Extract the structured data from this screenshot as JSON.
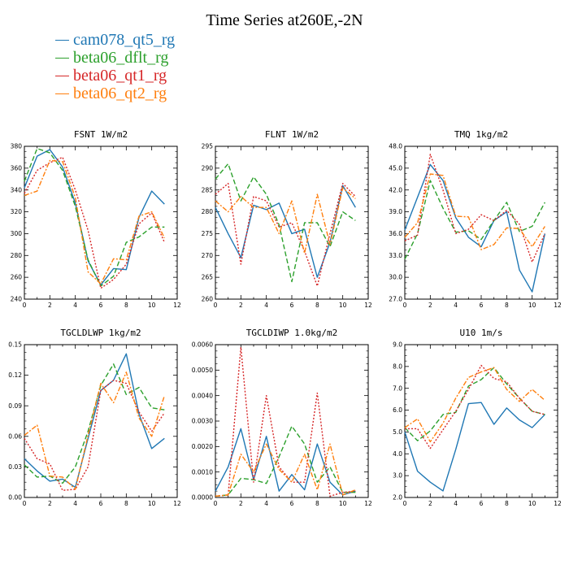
{
  "figure_title": "Time Series at260E,-2N",
  "colors": {
    "cam078_qt5_rg": "#1f77b4",
    "beta06_dflt_rg": "#2ca02c",
    "beta06_qt1_rg": "#d62728",
    "beta06_qt2_rg": "#ff7f0e"
  },
  "legend": [
    {
      "name": "cam078_qt5_rg",
      "color": "#1f77b4",
      "dash": "solid"
    },
    {
      "name": "beta06_dflt_rg",
      "color": "#2ca02c",
      "dash": "dashed"
    },
    {
      "name": "beta06_qt1_rg",
      "color": "#d62728",
      "dash": "dotted"
    },
    {
      "name": "beta06_qt2_rg",
      "color": "#ff7f0e",
      "dash": "dashdot"
    }
  ],
  "chart_data": [
    {
      "type": "line",
      "title": "FSNT   1W/m2",
      "x": [
        0,
        1,
        2,
        3,
        4,
        5,
        6,
        7,
        8,
        9,
        10,
        11
      ],
      "xlim": [
        0,
        12
      ],
      "xticks": [
        0,
        2,
        4,
        6,
        8,
        10,
        12
      ],
      "ylim": [
        240,
        380
      ],
      "yticks": [
        240,
        260,
        280,
        300,
        320,
        340,
        360,
        380
      ],
      "ytick_labels": [
        "240",
        "260",
        "280",
        "300",
        "320",
        "340",
        "360",
        "380"
      ],
      "series": [
        {
          "name": "cam078_qt5_rg",
          "values": [
            342,
            371,
            377,
            361,
            328,
            275,
            253,
            268,
            267,
            315,
            339,
            327
          ]
        },
        {
          "name": "beta06_dflt_rg",
          "values": [
            348,
            378,
            374,
            358,
            325,
            276,
            252,
            261,
            292,
            297,
            306,
            306
          ]
        },
        {
          "name": "beta06_qt1_rg",
          "values": [
            337,
            358,
            365,
            370,
            340,
            303,
            250,
            258,
            272,
            309,
            319,
            292
          ]
        },
        {
          "name": "beta06_qt2_rg",
          "values": [
            335,
            339,
            367,
            366,
            333,
            265,
            254,
            277,
            276,
            316,
            320,
            296
          ]
        }
      ]
    },
    {
      "type": "line",
      "title": "FLNT   1W/m2",
      "x": [
        0,
        1,
        2,
        3,
        4,
        5,
        6,
        7,
        8,
        9,
        10,
        11
      ],
      "xlim": [
        0,
        12
      ],
      "xticks": [
        0,
        2,
        4,
        6,
        8,
        10,
        12
      ],
      "ylim": [
        260,
        295
      ],
      "yticks": [
        260,
        265,
        270,
        275,
        280,
        285,
        290,
        295
      ],
      "ytick_labels": [
        "260",
        "265",
        "270",
        "275",
        "280",
        "285",
        "290",
        "295"
      ],
      "series": [
        {
          "name": "cam078_qt5_rg",
          "values": [
            281,
            275,
            269.5,
            281.5,
            280.5,
            282,
            275,
            276,
            265,
            273,
            286,
            281
          ]
        },
        {
          "name": "beta06_dflt_rg",
          "values": [
            287.5,
            291,
            282.5,
            288,
            284,
            277,
            264,
            277.5,
            277.5,
            272,
            280,
            278
          ]
        },
        {
          "name": "beta06_qt1_rg",
          "values": [
            284,
            286.5,
            268,
            283.5,
            282.5,
            276.5,
            277.5,
            271,
            263,
            275,
            286.5,
            283.5
          ]
        },
        {
          "name": "beta06_qt2_rg",
          "values": [
            282.5,
            280,
            283.5,
            281,
            281,
            275,
            282.5,
            270.5,
            284,
            272.5,
            285.5,
            283
          ]
        }
      ]
    },
    {
      "type": "line",
      "title": "TMQ   1kg/m2",
      "x": [
        0,
        1,
        2,
        3,
        4,
        5,
        6,
        7,
        8,
        9,
        10,
        11
      ],
      "xlim": [
        0,
        12
      ],
      "xticks": [
        0,
        2,
        4,
        6,
        8,
        10,
        12
      ],
      "ylim": [
        27,
        48
      ],
      "yticks": [
        27,
        30,
        33,
        36,
        39,
        42,
        45,
        48
      ],
      "ytick_labels": [
        "27.0",
        "30.0",
        "33.0",
        "36.0",
        "39.0",
        "42.0",
        "45.0",
        "48.0"
      ],
      "series": [
        {
          "name": "cam078_qt5_rg",
          "values": [
            36.5,
            41,
            45.5,
            43.3,
            38.2,
            35.5,
            34.2,
            37.8,
            39,
            31,
            28,
            36
          ]
        },
        {
          "name": "beta06_dflt_rg",
          "values": [
            32.5,
            36,
            43.3,
            39.5,
            36.2,
            36.4,
            35.2,
            37.8,
            40.3,
            36.3,
            37,
            40.3
          ]
        },
        {
          "name": "beta06_qt1_rg",
          "values": [
            35,
            35.8,
            46.9,
            42,
            36,
            36.6,
            38.6,
            37.8,
            39.2,
            37.3,
            32.1,
            36
          ]
        },
        {
          "name": "beta06_qt2_rg",
          "values": [
            35.5,
            37.5,
            44.2,
            44,
            38.4,
            38.3,
            33.8,
            34.5,
            36.8,
            36.7,
            34.2,
            37
          ]
        }
      ]
    },
    {
      "type": "line",
      "title": "TGCLDLWP   1kg/m2",
      "x": [
        0,
        1,
        2,
        3,
        4,
        5,
        6,
        7,
        8,
        9,
        10,
        11
      ],
      "xlim": [
        0,
        12
      ],
      "xticks": [
        0,
        2,
        4,
        6,
        8,
        10,
        12
      ],
      "ylim": [
        0,
        0.15
      ],
      "yticks": [
        0,
        0.03,
        0.06,
        0.09,
        0.12,
        0.15
      ],
      "ytick_labels": [
        "0.00",
        "0.03",
        "0.06",
        "0.09",
        "0.12",
        "0.15"
      ],
      "series": [
        {
          "name": "cam078_qt5_rg",
          "values": [
            0.038,
            0.026,
            0.016,
            0.018,
            0.01,
            0.058,
            0.105,
            0.115,
            0.141,
            0.082,
            0.048,
            0.058
          ]
        },
        {
          "name": "beta06_dflt_rg",
          "values": [
            0.032,
            0.02,
            0.021,
            0.014,
            0.03,
            0.065,
            0.11,
            0.131,
            0.101,
            0.108,
            0.088,
            0.086
          ]
        },
        {
          "name": "beta06_qt1_rg",
          "values": [
            0.058,
            0.038,
            0.033,
            0.007,
            0.008,
            0.03,
            0.105,
            0.115,
            0.112,
            0.084,
            0.065,
            0.083
          ]
        },
        {
          "name": "beta06_qt2_rg",
          "values": [
            0.061,
            0.071,
            0.021,
            0.02,
            0.008,
            0.061,
            0.112,
            0.093,
            0.123,
            0.078,
            0.06,
            0.1
          ]
        }
      ]
    },
    {
      "type": "line",
      "title": "TGCLDIWP   1.0kg/m2",
      "x": [
        0,
        1,
        2,
        3,
        4,
        5,
        6,
        7,
        8,
        9,
        10,
        11
      ],
      "xlim": [
        0,
        12
      ],
      "xticks": [
        0,
        2,
        4,
        6,
        8,
        10,
        12
      ],
      "ylim": [
        0,
        0.006
      ],
      "yticks": [
        0,
        0.001,
        0.002,
        0.003,
        0.004,
        0.005,
        0.006
      ],
      "ytick_labels": [
        "0.0000",
        "0.0010",
        "0.0020",
        "0.0030",
        "0.0040",
        "0.0050",
        "0.0060"
      ],
      "series": [
        {
          "name": "cam078_qt5_rg",
          "values": [
            0.00025,
            0.0012,
            0.0027,
            0.0007,
            0.0024,
            0.00025,
            0.0009,
            0.0003,
            0.0021,
            0.0006,
            0.0001,
            0.00025
          ]
        },
        {
          "name": "beta06_dflt_rg",
          "values": [
            5e-05,
            0.0001,
            0.00075,
            0.0007,
            0.00055,
            0.0016,
            0.0028,
            0.0021,
            0.0006,
            0.0012,
            0.0002,
            0.0002
          ]
        },
        {
          "name": "beta06_qt1_rg",
          "values": [
            5e-05,
            0.0001,
            0.0059,
            0.0006,
            0.004,
            0.0012,
            0.0006,
            0.0006,
            0.0041,
            5e-05,
            0.0002,
            0.00025
          ]
        },
        {
          "name": "beta06_qt2_rg",
          "values": [
            5e-05,
            0.0001,
            0.0017,
            0.001,
            0.0021,
            0.0011,
            0.0006,
            0.0017,
            0.0003,
            0.0021,
            0.0001,
            0.0003
          ]
        }
      ]
    },
    {
      "type": "line",
      "title": "U10   1m/s",
      "x": [
        0,
        1,
        2,
        3,
        4,
        5,
        6,
        7,
        8,
        9,
        10,
        11
      ],
      "xlim": [
        0,
        12
      ],
      "xticks": [
        0,
        2,
        4,
        6,
        8,
        10,
        12
      ],
      "ylim": [
        2,
        9
      ],
      "yticks": [
        2,
        3,
        4,
        5,
        6,
        7,
        8,
        9
      ],
      "ytick_labels": [
        "2.0",
        "3.0",
        "4.0",
        "5.0",
        "6.0",
        "7.0",
        "8.0",
        "9.0"
      ],
      "series": [
        {
          "name": "cam078_qt5_rg",
          "values": [
            5.0,
            3.2,
            2.7,
            2.3,
            4.2,
            6.3,
            6.35,
            5.35,
            6.1,
            5.55,
            5.2,
            5.8
          ]
        },
        {
          "name": "beta06_dflt_rg",
          "values": [
            5.2,
            4.6,
            5.05,
            5.8,
            5.9,
            7.1,
            7.4,
            7.95,
            7.2,
            6.55,
            5.95,
            5.8
          ]
        },
        {
          "name": "beta06_qt1_rg",
          "values": [
            5.15,
            5.15,
            4.25,
            5.1,
            5.95,
            6.95,
            8.05,
            7.45,
            7.3,
            6.55,
            5.95,
            5.8
          ]
        },
        {
          "name": "beta06_qt2_rg",
          "values": [
            5.2,
            5.6,
            4.55,
            5.4,
            6.55,
            7.5,
            7.75,
            7.95,
            6.95,
            6.4,
            6.95,
            6.45
          ]
        }
      ]
    }
  ]
}
